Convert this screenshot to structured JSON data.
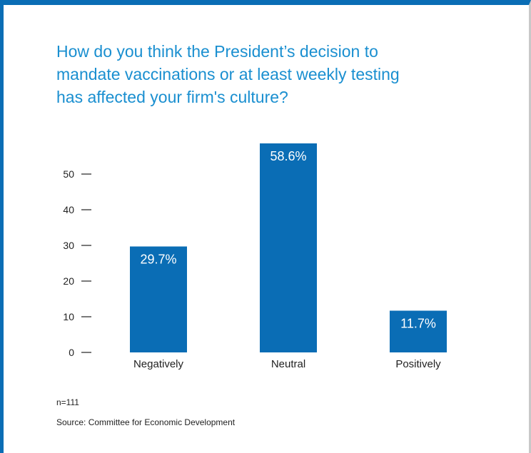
{
  "colors": {
    "frame": "#0a6db5",
    "title": "#1a8fd0",
    "bar": "#0a6db5",
    "bar_label": "#ffffff",
    "text": "#222222"
  },
  "title": "How do you think the President’s decision to\nmandate vaccinations or at least weekly testing\nhas affected your firm's culture?",
  "sample_note": "n=111",
  "source": "Source: Committee for Economic Development",
  "chart_data": {
    "type": "bar",
    "title": "How do you think the President’s decision to mandate vaccinations or at least weekly testing has affected your firm's culture?",
    "categories": [
      "Negatively",
      "Neutral",
      "Positively"
    ],
    "values": [
      29.7,
      58.6,
      11.7
    ],
    "value_labels": [
      "29.7%",
      "58.6%",
      "11.7%"
    ],
    "yticks": [
      "0",
      "10",
      "20",
      "30",
      "40",
      "50"
    ],
    "ylim": [
      0,
      60
    ],
    "xlabel": "",
    "ylabel": "",
    "grid": false,
    "legend": "none"
  }
}
